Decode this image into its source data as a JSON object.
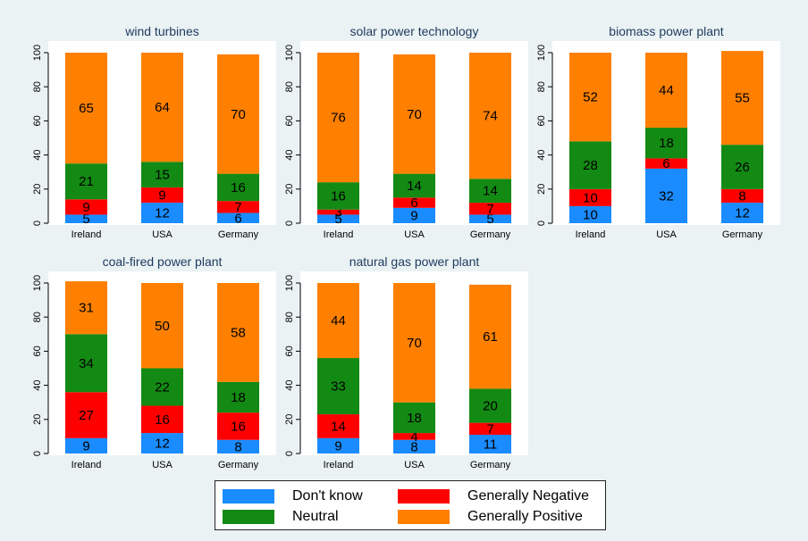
{
  "colors": {
    "dont_know": "#1a8cff",
    "generally_negative": "#ff0000",
    "neutral": "#138a13",
    "generally_positive": "#ff8000",
    "plot_background": "#ffffff",
    "figure_background": "#eaf2f3"
  },
  "legend": {
    "items": [
      {
        "label": "Don't know",
        "color": "#1a8cff"
      },
      {
        "label": "Generally Negative",
        "color": "#ff0000"
      },
      {
        "label": "Neutral",
        "color": "#138a13"
      },
      {
        "label": "Generally Positive",
        "color": "#ff8000"
      }
    ]
  },
  "chart_data": [
    {
      "type": "bar",
      "stacked": true,
      "title": "wind turbines",
      "categories": [
        "Ireland",
        "USA",
        "Germany"
      ],
      "ylim": [
        0,
        100
      ],
      "yticks": [
        0,
        20,
        40,
        60,
        80,
        100
      ],
      "series": [
        {
          "name": "Don't know",
          "values": [
            5,
            12,
            6
          ]
        },
        {
          "name": "Generally Negative",
          "values": [
            9,
            9,
            7
          ]
        },
        {
          "name": "Neutral",
          "values": [
            21,
            15,
            16
          ]
        },
        {
          "name": "Generally Positive",
          "values": [
            65,
            64,
            70
          ]
        }
      ]
    },
    {
      "type": "bar",
      "stacked": true,
      "title": "solar power technology",
      "categories": [
        "Ireland",
        "USA",
        "Germany"
      ],
      "ylim": [
        0,
        100
      ],
      "yticks": [
        0,
        20,
        40,
        60,
        80,
        100
      ],
      "series": [
        {
          "name": "Don't know",
          "values": [
            5,
            9,
            5
          ]
        },
        {
          "name": "Generally Negative",
          "values": [
            3,
            6,
            7
          ]
        },
        {
          "name": "Neutral",
          "values": [
            16,
            14,
            14
          ]
        },
        {
          "name": "Generally Positive",
          "values": [
            76,
            70,
            74
          ]
        }
      ]
    },
    {
      "type": "bar",
      "stacked": true,
      "title": "biomass power plant",
      "categories": [
        "Ireland",
        "USA",
        "Germany"
      ],
      "ylim": [
        0,
        100
      ],
      "yticks": [
        0,
        20,
        40,
        60,
        80,
        100
      ],
      "series": [
        {
          "name": "Don't know",
          "values": [
            10,
            32,
            12
          ]
        },
        {
          "name": "Generally Negative",
          "values": [
            10,
            6,
            8
          ]
        },
        {
          "name": "Neutral",
          "values": [
            28,
            18,
            26
          ]
        },
        {
          "name": "Generally Positive",
          "values": [
            52,
            44,
            55
          ]
        }
      ]
    },
    {
      "type": "bar",
      "stacked": true,
      "title": "coal-fired power plant",
      "categories": [
        "Ireland",
        "USA",
        "Germany"
      ],
      "ylim": [
        0,
        100
      ],
      "yticks": [
        0,
        20,
        40,
        60,
        80,
        100
      ],
      "series": [
        {
          "name": "Don't know",
          "values": [
            9,
            12,
            8
          ]
        },
        {
          "name": "Generally Negative",
          "values": [
            27,
            16,
            16
          ]
        },
        {
          "name": "Neutral",
          "values": [
            34,
            22,
            18
          ]
        },
        {
          "name": "Generally Positive",
          "values": [
            31,
            50,
            58
          ]
        }
      ]
    },
    {
      "type": "bar",
      "stacked": true,
      "title": "natural gas power plant",
      "categories": [
        "Ireland",
        "USA",
        "Germany"
      ],
      "ylim": [
        0,
        100
      ],
      "yticks": [
        0,
        20,
        40,
        60,
        80,
        100
      ],
      "series": [
        {
          "name": "Don't know",
          "values": [
            9,
            8,
            11
          ]
        },
        {
          "name": "Generally Negative",
          "values": [
            14,
            4,
            7
          ]
        },
        {
          "name": "Neutral",
          "values": [
            33,
            18,
            20
          ]
        },
        {
          "name": "Generally Positive",
          "values": [
            44,
            70,
            61
          ]
        }
      ]
    }
  ]
}
